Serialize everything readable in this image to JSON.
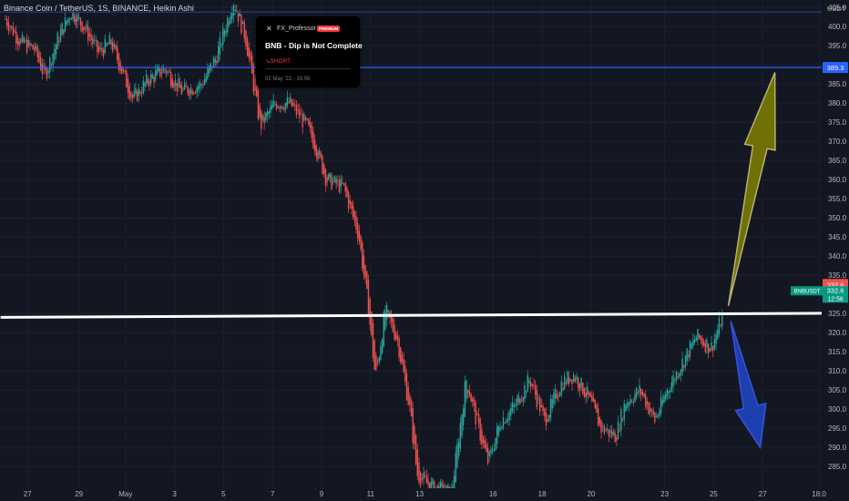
{
  "header": {
    "title": "Binance Coin / TetherUS, 1S, BINANCE, Heikin Ashi"
  },
  "idea_card": {
    "author": "FX_Professor",
    "badge": "PREMIUM",
    "idea_title": "BNB - Dip is Not Complete",
    "direction": "SHORT",
    "date": "02 May '22 - 15:56"
  },
  "colors": {
    "background": "#131722",
    "up_candle": "#26a69a",
    "down_candle": "#ef5350",
    "level_line": "#2962ff",
    "trend_line": "#ffffff",
    "up_arrow": "#808000",
    "down_arrow": "#2047c8",
    "last_price_label": "#ef5350",
    "symbol_label": "#089981"
  },
  "chart_data": {
    "type": "candlestick",
    "yaxis": {
      "currency": "USDT",
      "ticks": [
        "405.0",
        "400.0",
        "395.0",
        "390.0",
        "385.0",
        "380.0",
        "375.0",
        "370.0",
        "365.0",
        "360.0",
        "355.0",
        "350.0",
        "345.0",
        "340.0",
        "335.0",
        "325.0",
        "320.0",
        "315.0",
        "310.0",
        "305.0",
        "300.0",
        "295.0",
        "290.0",
        "285.0"
      ],
      "range": [
        283,
        406
      ]
    },
    "xaxis": {
      "ticks": [
        "27",
        "29",
        "May",
        "3",
        "5",
        "7",
        "9",
        "11",
        "13",
        "16",
        "18",
        "20",
        "23",
        "25",
        "27",
        "18:0"
      ]
    },
    "price_path": [
      {
        "d": 0,
        "p": 402
      },
      {
        "d": 0.6,
        "p": 396
      },
      {
        "d": 1.2,
        "p": 394
      },
      {
        "d": 1.6,
        "p": 387
      },
      {
        "d": 2.2,
        "p": 398
      },
      {
        "d": 2.7,
        "p": 404
      },
      {
        "d": 3.3,
        "p": 399
      },
      {
        "d": 3.8,
        "p": 393
      },
      {
        "d": 4.3,
        "p": 396
      },
      {
        "d": 5.2,
        "p": 381
      },
      {
        "d": 5.8,
        "p": 386
      },
      {
        "d": 6.5,
        "p": 389
      },
      {
        "d": 7.2,
        "p": 383
      },
      {
        "d": 8.0,
        "p": 385
      },
      {
        "d": 8.6,
        "p": 392
      },
      {
        "d": 9.3,
        "p": 407
      },
      {
        "d": 9.8,
        "p": 397
      },
      {
        "d": 10.4,
        "p": 374
      },
      {
        "d": 11.0,
        "p": 380
      },
      {
        "d": 11.6,
        "p": 380
      },
      {
        "d": 12.3,
        "p": 374
      },
      {
        "d": 12.7,
        "p": 368
      },
      {
        "d": 13.1,
        "p": 360
      },
      {
        "d": 13.8,
        "p": 358
      },
      {
        "d": 14.4,
        "p": 346
      },
      {
        "d": 14.8,
        "p": 327
      },
      {
        "d": 15.1,
        "p": 308
      },
      {
        "d": 15.5,
        "p": 326
      },
      {
        "d": 16.0,
        "p": 318
      },
      {
        "d": 16.5,
        "p": 300
      },
      {
        "d": 16.8,
        "p": 283
      },
      {
        "d": 17.3,
        "p": 280
      },
      {
        "d": 18.2,
        "p": 278
      },
      {
        "d": 18.8,
        "p": 308
      },
      {
        "d": 19.3,
        "p": 295
      },
      {
        "d": 19.7,
        "p": 286
      },
      {
        "d": 20.2,
        "p": 297
      },
      {
        "d": 20.8,
        "p": 301
      },
      {
        "d": 21.4,
        "p": 308
      },
      {
        "d": 22.0,
        "p": 297
      },
      {
        "d": 22.7,
        "p": 307
      },
      {
        "d": 23.2,
        "p": 309
      },
      {
        "d": 23.8,
        "p": 303
      },
      {
        "d": 24.3,
        "p": 295
      },
      {
        "d": 24.9,
        "p": 293
      },
      {
        "d": 25.3,
        "p": 302
      },
      {
        "d": 25.9,
        "p": 305
      },
      {
        "d": 26.5,
        "p": 297
      },
      {
        "d": 27.0,
        "p": 305
      },
      {
        "d": 27.6,
        "p": 312
      },
      {
        "d": 28.2,
        "p": 319
      },
      {
        "d": 28.8,
        "p": 316
      },
      {
        "d": 29.3,
        "p": 325
      }
    ],
    "levels": [
      {
        "name": "resistance",
        "value": 389.3,
        "label": "389.3"
      }
    ],
    "trend_line": {
      "from": {
        "d": -0.2,
        "p": 324.0
      },
      "to": {
        "d": 34.2,
        "p": 325.1
      }
    },
    "last_price": {
      "value": 332.6,
      "label": "332.6"
    },
    "symbol_tag": {
      "symbol": "BNBUSDT",
      "price": "332.6",
      "countdown": "12:56"
    },
    "annotations": [
      {
        "type": "up-arrow",
        "from": {
          "d": 29.5,
          "p": 327
        },
        "to": {
          "d": 31.4,
          "p": 388
        }
      },
      {
        "type": "down-arrow",
        "from": {
          "d": 29.6,
          "p": 323
        },
        "to": {
          "d": 30.8,
          "p": 290
        }
      }
    ]
  }
}
